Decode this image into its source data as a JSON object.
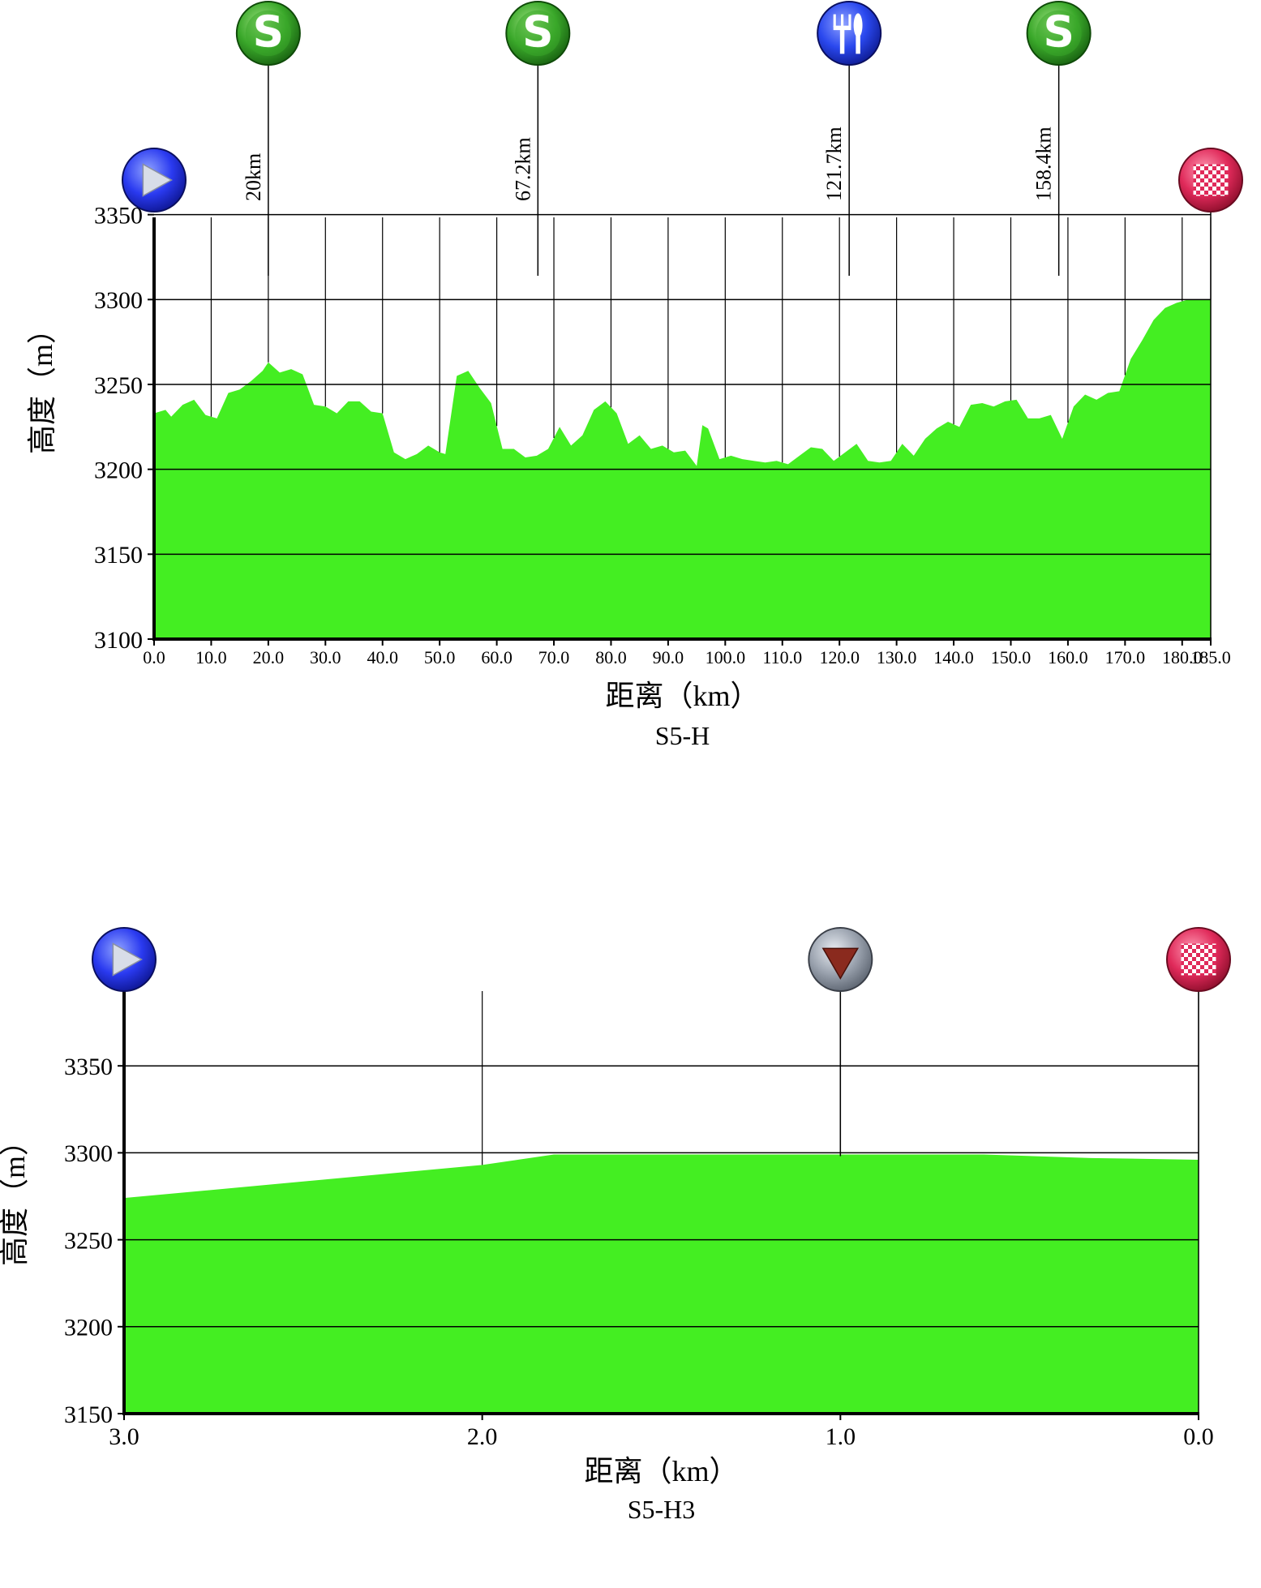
{
  "chart_data": [
    {
      "type": "area",
      "title": "S5-H",
      "xlabel": "距离（km）",
      "ylabel": "高度（m）",
      "xlim": [
        0,
        185
      ],
      "ylim": [
        3100,
        3400
      ],
      "x_ticks": [
        "0.0",
        "10.0",
        "20.0",
        "30.0",
        "40.0",
        "50.0",
        "60.0",
        "70.0",
        "80.0",
        "90.0",
        "100.0",
        "110.0",
        "120.0",
        "130.0",
        "140.0",
        "150.0",
        "160.0",
        "170.0",
        "180.0",
        "185.0"
      ],
      "x_tick_values": [
        0,
        10,
        20,
        30,
        40,
        50,
        60,
        70,
        80,
        90,
        100,
        110,
        120,
        130,
        140,
        150,
        160,
        170,
        180,
        185
      ],
      "y_ticks": [
        3100,
        3150,
        3200,
        3250,
        3300,
        3350
      ],
      "grid": true,
      "color": "#44ee22",
      "x": [
        0,
        2,
        3,
        5,
        7,
        9,
        11,
        13,
        15,
        17,
        19,
        20,
        22,
        24,
        26,
        28,
        30,
        32,
        34,
        36,
        38,
        40,
        42,
        44,
        46,
        48,
        50,
        51,
        53,
        55,
        57,
        59,
        61,
        63,
        65,
        67,
        69,
        71,
        73,
        75,
        77,
        79,
        81,
        83,
        85,
        87,
        89,
        91,
        93,
        95,
        96,
        97,
        99,
        101,
        103,
        105,
        107,
        109,
        111,
        113,
        115,
        117,
        119,
        121,
        123,
        125,
        127,
        129,
        131,
        133,
        135,
        137,
        139,
        141,
        143,
        145,
        147,
        149,
        151,
        153,
        155,
        157,
        159,
        161,
        163,
        165,
        167,
        169,
        171,
        173,
        175,
        177,
        179,
        181,
        185
      ],
      "values": [
        3233,
        3235,
        3231,
        3238,
        3241,
        3232,
        3230,
        3245,
        3247,
        3252,
        3258,
        3263,
        3257,
        3259,
        3256,
        3238,
        3237,
        3233,
        3240,
        3240,
        3234,
        3233,
        3210,
        3206,
        3209,
        3214,
        3210,
        3209,
        3255,
        3258,
        3248,
        3239,
        3212,
        3212,
        3207,
        3208,
        3212,
        3225,
        3214,
        3220,
        3235,
        3240,
        3233,
        3215,
        3220,
        3212,
        3214,
        3210,
        3211,
        3202,
        3226,
        3224,
        3206,
        3208,
        3206,
        3205,
        3204,
        3205,
        3203,
        3208,
        3213,
        3212,
        3205,
        3210,
        3215,
        3205,
        3204,
        3205,
        3215,
        3208,
        3218,
        3224,
        3228,
        3225,
        3238,
        3239,
        3237,
        3240,
        3241,
        3230,
        3230,
        3232,
        3218,
        3237,
        3244,
        3241,
        3245,
        3246,
        3265,
        3276,
        3288,
        3295,
        3298,
        3300,
        3300
      ],
      "markers": [
        {
          "name": "start",
          "x": 0,
          "label": ""
        },
        {
          "name": "sprint",
          "x": 20,
          "label": "20km"
        },
        {
          "name": "sprint",
          "x": 67.2,
          "label": "67.2km"
        },
        {
          "name": "feed",
          "x": 121.7,
          "label": "121.7km"
        },
        {
          "name": "sprint",
          "x": 158.4,
          "label": "158.4km"
        },
        {
          "name": "finish",
          "x": 185,
          "label": ""
        }
      ]
    },
    {
      "type": "area",
      "title": "S5-H3",
      "xlabel": "距离（km）",
      "ylabel": "高度（m）",
      "xlim": [
        3,
        0
      ],
      "ylim": [
        3150,
        3400
      ],
      "x_ticks": [
        "3.0",
        "2.0",
        "1.0",
        "0.0"
      ],
      "x_tick_values": [
        3,
        2,
        1,
        0
      ],
      "y_ticks": [
        3150,
        3200,
        3250,
        3300,
        3350
      ],
      "grid": true,
      "color": "#44ee22",
      "x": [
        3.0,
        2.0,
        1.8,
        1.5,
        1.0,
        0.6,
        0.3,
        0.0
      ],
      "values": [
        3274,
        3293,
        3299,
        3299,
        3299,
        3299,
        3297,
        3296
      ],
      "markers": [
        {
          "name": "start",
          "x": 3,
          "label": ""
        },
        {
          "name": "flamme-rouge",
          "x": 1,
          "label": ""
        },
        {
          "name": "finish",
          "x": 0,
          "label": ""
        }
      ]
    }
  ],
  "colors": {
    "fill": "#44ee22",
    "start": "#2233ee",
    "sprint": "#33aa22",
    "feed": "#2244ee",
    "finish": "#dd2255",
    "flamme": "#888888"
  },
  "icons": {
    "start": "play-icon",
    "sprint": "sprint-s-icon",
    "feed": "fork-knife-icon",
    "finish": "checkered-flag-icon",
    "flamme-rouge": "red-triangle-icon"
  }
}
